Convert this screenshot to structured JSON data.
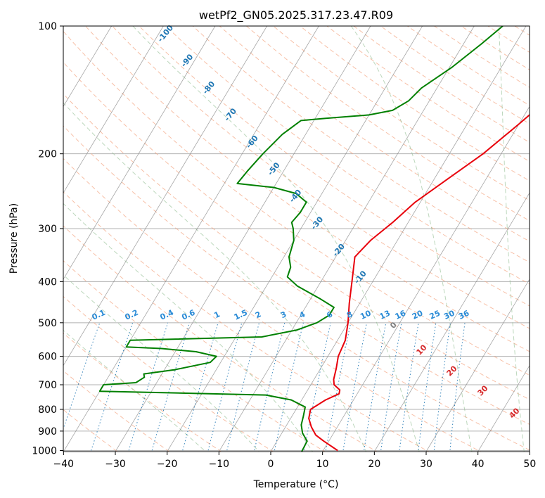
{
  "chart_data": {
    "type": "line",
    "title": "wetPf2_GN05.2025.317.23.47.R09",
    "xlabel": "Temperature (°C)",
    "ylabel": "Pressure (hPa)",
    "xlim": [
      -40,
      50
    ],
    "ylim": [
      1050,
      100
    ],
    "y_scale": "log",
    "grid": true,
    "x_ticks": [
      -40,
      -30,
      -20,
      -10,
      0,
      10,
      20,
      30,
      40,
      50
    ],
    "y_ticks": [
      100,
      200,
      300,
      400,
      500,
      600,
      700,
      800,
      900,
      1000
    ],
    "isotherm_labels": [
      "-100",
      "-90",
      "-80",
      "-70",
      "-60",
      "-50",
      "-40",
      "-30",
      "-20",
      "-10"
    ],
    "mixing_ratio_labels": [
      "0.1",
      "0.2",
      "0.4",
      "0.6",
      "1",
      "1.5",
      "2",
      "3",
      "4",
      "6",
      "8",
      "10",
      "13",
      "16",
      "20",
      "25",
      "30",
      "36"
    ],
    "adiabat_labels": [
      "0",
      "10",
      "20",
      "30",
      "40"
    ],
    "colors": {
      "temperature": "#e8000b",
      "dewpoint": "#008000",
      "isotherm": "#808080",
      "dry_adiabat": "#f4a582",
      "moist_adiabat": "#8fbc8f",
      "mixing_ratio": "#1f77b4",
      "label_blue": "#1f77b4",
      "label_red": "#d62728"
    },
    "series": [
      {
        "values": [
          {
            "p": 1000,
            "t": 12.8
          },
          {
            "p": 950,
            "t": 9.0
          },
          {
            "p": 920,
            "t": 6.8
          },
          {
            "p": 880,
            "t": 5.0
          },
          {
            "p": 840,
            "t": 3.5
          },
          {
            "p": 800,
            "t": 2.8
          },
          {
            "p": 760,
            "t": 4.6
          },
          {
            "p": 735,
            "t": 6.5
          },
          {
            "p": 720,
            "t": 6.2
          },
          {
            "p": 700,
            "t": 4.5
          },
          {
            "p": 680,
            "t": 3.8
          },
          {
            "p": 640,
            "t": 3.0
          },
          {
            "p": 600,
            "t": 2.0
          },
          {
            "p": 550,
            "t": 1.5
          },
          {
            "p": 500,
            "t": 0.0
          },
          {
            "p": 450,
            "t": -2.0
          },
          {
            "p": 400,
            "t": -4.0
          },
          {
            "p": 350,
            "t": -6.3
          },
          {
            "p": 320,
            "t": -5.2
          },
          {
            "p": 290,
            "t": -3.0
          },
          {
            "p": 260,
            "t": -1.0
          },
          {
            "p": 230,
            "t": 2.5
          },
          {
            "p": 200,
            "t": 6.5
          },
          {
            "p": 170,
            "t": 10.0
          },
          {
            "p": 150,
            "t": 12.5
          },
          {
            "p": 130,
            "t": 16.5
          },
          {
            "p": 110,
            "t": 23.5
          },
          {
            "p": 100,
            "t": 26.5
          }
        ]
      },
      {
        "values": [
          {
            "p": 1010,
            "t": 6.0
          },
          {
            "p": 950,
            "t": 5.8
          },
          {
            "p": 910,
            "t": 4.0
          },
          {
            "p": 870,
            "t": 2.8
          },
          {
            "p": 830,
            "t": 2.2
          },
          {
            "p": 790,
            "t": 1.5
          },
          {
            "p": 760,
            "t": -2.0
          },
          {
            "p": 740,
            "t": -7.5
          },
          {
            "p": 725,
            "t": -40.0
          },
          {
            "p": 700,
            "t": -40.0
          },
          {
            "p": 692,
            "t": -34.0
          },
          {
            "p": 672,
            "t": -33.0
          },
          {
            "p": 660,
            "t": -33.5
          },
          {
            "p": 645,
            "t": -28.0
          },
          {
            "p": 620,
            "t": -22.0
          },
          {
            "p": 600,
            "t": -21.5
          },
          {
            "p": 585,
            "t": -26.0
          },
          {
            "p": 575,
            "t": -33.0
          },
          {
            "p": 570,
            "t": -40.0
          },
          {
            "p": 550,
            "t": -40.0
          },
          {
            "p": 540,
            "t": -15.0
          },
          {
            "p": 520,
            "t": -9.0
          },
          {
            "p": 500,
            "t": -6.0
          },
          {
            "p": 480,
            "t": -4.5
          },
          {
            "p": 460,
            "t": -4.5
          },
          {
            "p": 440,
            "t": -8.0
          },
          {
            "p": 410,
            "t": -14.0
          },
          {
            "p": 390,
            "t": -17.0
          },
          {
            "p": 370,
            "t": -17.5
          },
          {
            "p": 350,
            "t": -19.0
          },
          {
            "p": 320,
            "t": -20.0
          },
          {
            "p": 300,
            "t": -21.5
          },
          {
            "p": 290,
            "t": -22.5
          },
          {
            "p": 275,
            "t": -22.0
          },
          {
            "p": 260,
            "t": -22.0
          },
          {
            "p": 248,
            "t": -25.0
          },
          {
            "p": 240,
            "t": -30.0
          },
          {
            "p": 235,
            "t": -37.5
          },
          {
            "p": 220,
            "t": -37.0
          },
          {
            "p": 200,
            "t": -36.0
          },
          {
            "p": 180,
            "t": -34.5
          },
          {
            "p": 167,
            "t": -32.5
          },
          {
            "p": 165,
            "t": -28.0
          },
          {
            "p": 162,
            "t": -20.0
          },
          {
            "p": 158,
            "t": -16.0
          },
          {
            "p": 150,
            "t": -14.0
          },
          {
            "p": 140,
            "t": -13.0
          },
          {
            "p": 125,
            "t": -9.5
          },
          {
            "p": 110,
            "t": -6.5
          },
          {
            "p": 100,
            "t": -4.5
          }
        ]
      }
    ]
  }
}
